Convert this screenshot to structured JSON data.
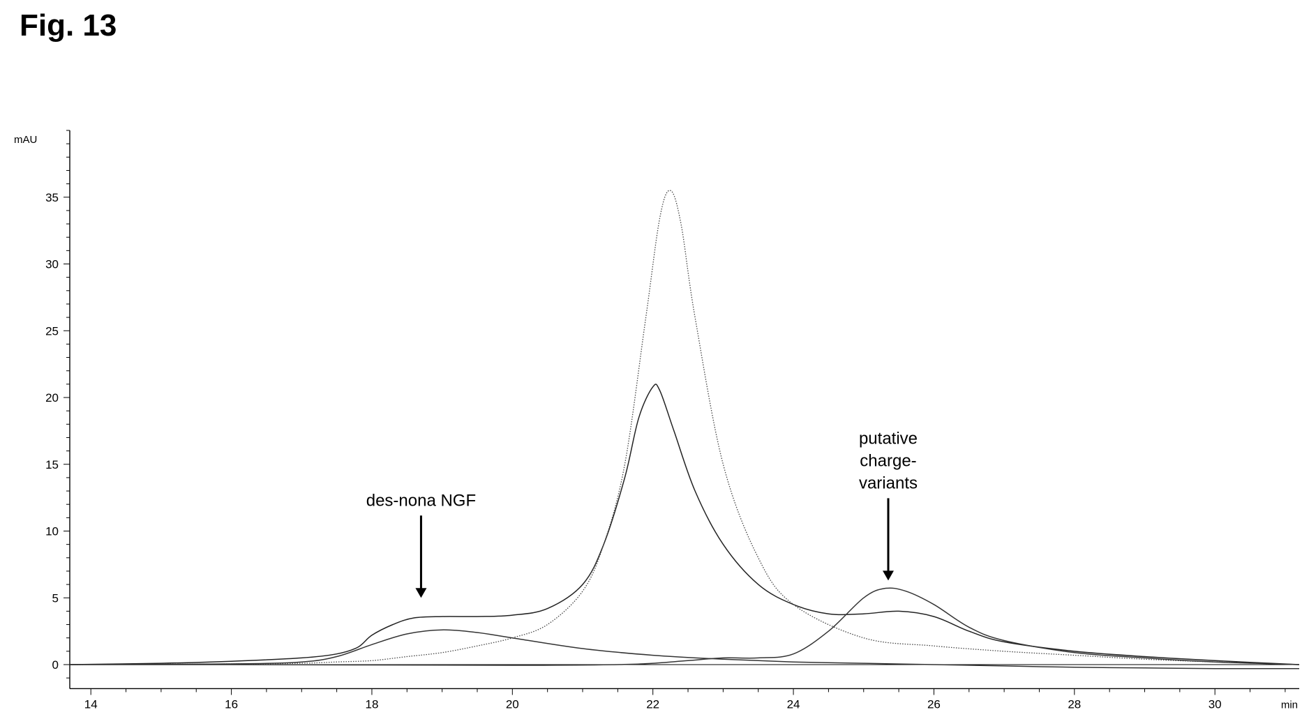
{
  "figure": {
    "title": "Fig. 13"
  },
  "chart_data": {
    "type": "line",
    "xlabel": "min",
    "ylabel": "mAU",
    "xlim": [
      13.7,
      31.2
    ],
    "ylim": [
      -1.8,
      40
    ],
    "x_ticks": [
      14,
      16,
      18,
      20,
      22,
      24,
      26,
      28,
      30
    ],
    "y_ticks": [
      0,
      5,
      10,
      15,
      20,
      25,
      30,
      35
    ],
    "grid": false,
    "legend": "none",
    "series": [
      {
        "style": "solid",
        "color": "#222222",
        "x": [
          13.7,
          15,
          16,
          17,
          17.5,
          17.8,
          18,
          18.3,
          18.6,
          19,
          19.5,
          20,
          20.5,
          21,
          21.3,
          21.6,
          21.8,
          22,
          22.1,
          22.3,
          22.6,
          23,
          23.5,
          24,
          24.5,
          25,
          25.5,
          26,
          26.5,
          27,
          28,
          29,
          30,
          31.2
        ],
        "y": [
          0,
          0.1,
          0.25,
          0.5,
          0.8,
          1.3,
          2.2,
          3.0,
          3.5,
          3.6,
          3.6,
          3.7,
          4.2,
          6.0,
          9.0,
          14.0,
          18.5,
          20.8,
          20.5,
          17.5,
          13.0,
          9.0,
          6.0,
          4.5,
          3.8,
          3.8,
          4.0,
          3.6,
          2.5,
          1.7,
          1.0,
          0.6,
          0.3,
          0.0
        ]
      },
      {
        "style": "dotted",
        "color": "#444444",
        "x": [
          13.7,
          16,
          17,
          17.5,
          18,
          18.5,
          19,
          19.5,
          20,
          20.5,
          21,
          21.3,
          21.6,
          21.9,
          22.1,
          22.25,
          22.4,
          22.6,
          23,
          23.5,
          24,
          25,
          26,
          27,
          28,
          29,
          30,
          31.2
        ],
        "y": [
          0,
          0.05,
          0.1,
          0.2,
          0.3,
          0.6,
          0.9,
          1.4,
          2.0,
          3.0,
          5.5,
          9.0,
          15.0,
          26.0,
          33.5,
          35.5,
          33.0,
          26.0,
          15.0,
          8.0,
          4.5,
          2.0,
          1.4,
          1.0,
          0.7,
          0.4,
          0.2,
          0.0
        ]
      },
      {
        "style": "solid",
        "color": "#333333",
        "x": [
          13.7,
          16,
          17,
          17.5,
          18,
          18.5,
          19,
          19.5,
          20,
          21,
          22,
          23,
          24,
          25,
          26,
          27,
          28,
          29,
          30,
          31.2
        ],
        "y": [
          0,
          0.05,
          0.2,
          0.6,
          1.5,
          2.3,
          2.6,
          2.4,
          2.0,
          1.2,
          0.7,
          0.4,
          0.2,
          0.1,
          0.0,
          -0.1,
          -0.2,
          -0.25,
          -0.3,
          -0.3
        ]
      },
      {
        "style": "solid",
        "color": "#333333",
        "x": [
          13.7,
          16,
          20,
          21.5,
          22,
          22.5,
          23,
          23.5,
          24,
          24.5,
          25,
          25.3,
          25.6,
          26,
          26.5,
          27,
          28,
          29,
          30,
          31.2
        ],
        "y": [
          0,
          0,
          -0.05,
          0.0,
          0.1,
          0.3,
          0.5,
          0.5,
          0.8,
          2.5,
          5.0,
          5.7,
          5.5,
          4.5,
          2.8,
          1.8,
          0.9,
          0.5,
          0.2,
          0.0
        ]
      }
    ],
    "annotations": [
      {
        "lines": [
          "des-nona NGF"
        ],
        "x": 18.7,
        "arrow_tip_y": 5.0
      },
      {
        "lines": [
          "putative",
          "charge-",
          "variants"
        ],
        "x": 25.35,
        "arrow_tip_y": 6.3
      }
    ]
  }
}
